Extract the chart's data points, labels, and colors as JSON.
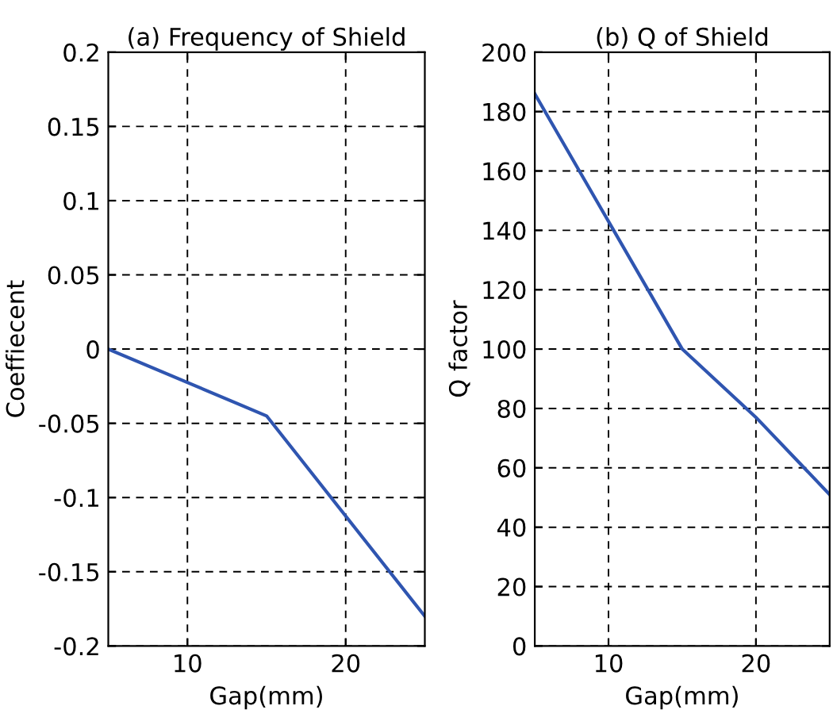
{
  "chart_data": [
    {
      "type": "line",
      "title": "(a) Frequency of Shield",
      "xlabel": "Gap(mm)",
      "ylabel": "Coeffiecent",
      "grid": true,
      "line_style": "solid",
      "series": [
        {
          "color": "#2f55b0",
          "x": [
            5,
            15,
            25
          ],
          "values": [
            0,
            -0.045,
            -0.18
          ]
        }
      ],
      "xlim": [
        5,
        25
      ],
      "xticks": [
        10,
        20
      ],
      "ylim": [
        -0.2,
        0.2
      ],
      "yticks": [
        -0.2,
        -0.15,
        -0.1,
        -0.05,
        0,
        0.05,
        0.1,
        0.15,
        0.2
      ]
    },
    {
      "type": "line",
      "title": "(b) Q of Shield",
      "xlabel": "Gap(mm)",
      "ylabel": "Q factor",
      "grid": true,
      "line_style": "solid",
      "series": [
        {
          "color": "#2f55b0",
          "x": [
            5,
            10,
            15,
            20,
            25
          ],
          "values": [
            186,
            143,
            100,
            77,
            51
          ]
        }
      ],
      "xlim": [
        5,
        25
      ],
      "xticks": [
        10,
        20
      ],
      "ylim": [
        0,
        200
      ],
      "yticks": [
        0,
        20,
        40,
        60,
        80,
        100,
        120,
        140,
        160,
        180,
        200
      ]
    }
  ]
}
